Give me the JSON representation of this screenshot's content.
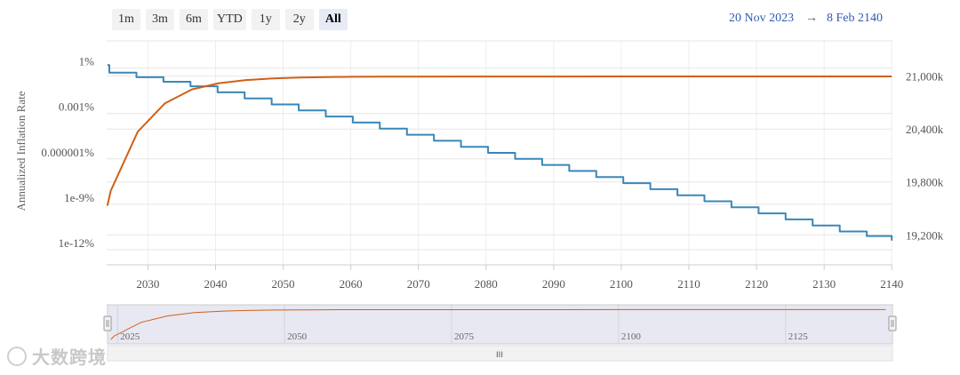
{
  "range_selector": {
    "buttons": [
      "1m",
      "3m",
      "6m",
      "YTD",
      "1y",
      "2y",
      "All"
    ],
    "active": "All"
  },
  "date_range": {
    "from": "20 Nov 2023",
    "arrow": "→",
    "to": "8 Feb 2140"
  },
  "navigator": {
    "ticks": [
      "2025",
      "2050",
      "2075",
      "2100",
      "2125"
    ],
    "scrollbar_grip": "III"
  },
  "watermark": {
    "text": "大数跨境"
  },
  "colors": {
    "inflation": "#3a87b8",
    "supply": "#d06017",
    "link": "#335cad"
  },
  "chart_data": {
    "type": "line",
    "xlabel": "",
    "ylabel": "Annualized Inflation Rate",
    "x_ticks": [
      "2030",
      "2040",
      "2050",
      "2060",
      "2070",
      "2080",
      "2090",
      "2100",
      "2110",
      "2120",
      "2130",
      "2140"
    ],
    "x_range": [
      2023.9,
      2140.1
    ],
    "y_left": {
      "label": "Annualized Inflation Rate",
      "scale": "log",
      "ticks": [
        "1%",
        "0.001%",
        "0.000001%",
        "1e-9%",
        "1e-12%"
      ],
      "tick_exponents": [
        0,
        -3,
        -6,
        -9,
        -12
      ],
      "range_exponent": [
        -13,
        1.8
      ]
    },
    "y_right": {
      "ticks": [
        "21,000k",
        "20,400k",
        "19,800k",
        "19,200k"
      ],
      "tick_values": [
        21000,
        20400,
        19800,
        19200
      ],
      "range": [
        18860,
        21400
      ]
    },
    "grid": true,
    "series": [
      {
        "axis": "left",
        "step": true,
        "x": [
          2024.0,
          2024.3,
          2028.3,
          2032.3,
          2036.3,
          2040.3,
          2044.3,
          2048.3,
          2052.3,
          2056.3,
          2060.3,
          2064.3,
          2068.3,
          2072.3,
          2076.3,
          2080.3,
          2084.3,
          2088.3,
          2092.3,
          2096.3,
          2100.3,
          2104.3,
          2108.3,
          2112.3,
          2116.3,
          2120.3,
          2124.3,
          2128.3,
          2132.3,
          2136.3,
          2140.0
        ],
        "y": [
          0.2,
          -0.3,
          -0.6,
          -0.9,
          -1.2,
          -1.6,
          -2.0,
          -2.4,
          -2.8,
          -3.2,
          -3.6,
          -4.0,
          -4.4,
          -4.8,
          -5.2,
          -5.6,
          -6.0,
          -6.4,
          -6.8,
          -7.2,
          -7.6,
          -8.0,
          -8.4,
          -8.8,
          -9.2,
          -9.6,
          -10.0,
          -10.4,
          -10.8,
          -11.1,
          -11.4
        ]
      },
      {
        "axis": "right",
        "step": false,
        "x": [
          2024.0,
          2024.5,
          2028.5,
          2032.5,
          2036.5,
          2040.5,
          2044.5,
          2048.5,
          2052.5,
          2056.5,
          2060.5,
          2064.5,
          2070.0,
          2080.0,
          2090.0,
          2100.0,
          2110.0,
          2120.0,
          2130.0,
          2140.0
        ],
        "y": [
          19530,
          19700,
          20370,
          20690,
          20850,
          20920,
          20955,
          20975,
          20985,
          20990,
          20993,
          20994,
          20995,
          20996,
          20996,
          20997,
          20997,
          20997,
          20997,
          20997
        ]
      }
    ]
  }
}
